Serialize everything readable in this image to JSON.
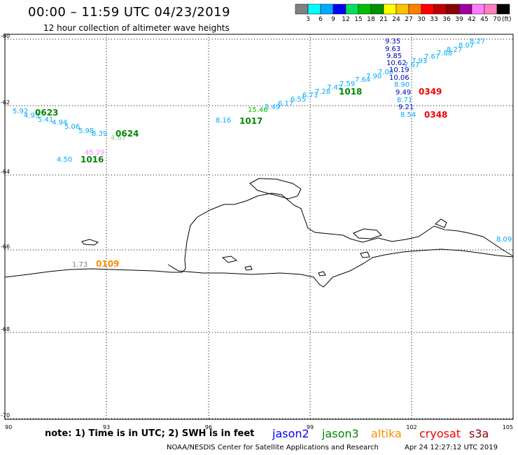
{
  "title": "00:00 – 11:59 UTC 04/23/2019",
  "subtitle": "12 hour collection of altimeter wave heights",
  "colorbar": {
    "unit": "(ft)",
    "swatches": [
      "#808080",
      "#00ffff",
      "#00aaff",
      "#0000ff",
      "#00e060",
      "#00c000",
      "#009000",
      "#ffff00",
      "#ffc000",
      "#ff7f00",
      "#ff0000",
      "#c00000",
      "#8b0000",
      "#a000a0",
      "#ff80ff",
      "#ff80c0",
      "#000000"
    ],
    "ticks": [
      "3",
      "6",
      "9",
      "12",
      "15",
      "18",
      "21",
      "24",
      "27",
      "30",
      "33",
      "36",
      "39",
      "42",
      "45",
      "70"
    ]
  },
  "axes": {
    "lon_labels": [
      "90",
      "93",
      "96",
      "99",
      "102",
      "105"
    ],
    "lat_labels": [
      "-60",
      "-62",
      "-64",
      "-66",
      "-68",
      "-70"
    ]
  },
  "wave_labels": [
    {
      "text": "9.35",
      "color": "#0000c0"
    },
    {
      "text": "8.27",
      "color": "#00aaff"
    },
    {
      "text": "9.63",
      "color": "#0000c0"
    },
    {
      "text": "8.07",
      "color": "#00aaff"
    },
    {
      "text": "8.27",
      "color": "#00aaff"
    },
    {
      "text": "9.85",
      "color": "#0000c0"
    },
    {
      "text": "7.88",
      "color": "#00aaff"
    },
    {
      "text": "7.67",
      "color": "#00aaff"
    },
    {
      "text": "7.93",
      "color": "#00aaff"
    },
    {
      "text": "10.62",
      "color": "#0000c0"
    },
    {
      "text": "7.67",
      "color": "#00aaff"
    },
    {
      "text": "10.19",
      "color": "#0000c0"
    },
    {
      "text": "7.00",
      "color": "#00aaff"
    },
    {
      "text": "10.06",
      "color": "#0000c0"
    },
    {
      "text": "7.90",
      "color": "#00aaff"
    },
    {
      "text": "7.64",
      "color": "#00aaff"
    },
    {
      "text": "8.90",
      "color": "#00aaff"
    },
    {
      "text": "7.59",
      "color": "#00aaff"
    },
    {
      "text": "7.42",
      "color": "#00aaff"
    },
    {
      "text": "9.49",
      "color": "#0000c0"
    },
    {
      "text": "7.28",
      "color": "#00aaff"
    },
    {
      "text": "6.73",
      "color": "#00aaff"
    },
    {
      "text": "8.71",
      "color": "#00aaff"
    },
    {
      "text": "6.55",
      "color": "#00aaff"
    },
    {
      "text": "6.17",
      "color": "#00aaff"
    },
    {
      "text": "9.21",
      "color": "#0000c0"
    },
    {
      "text": "5.49",
      "color": "#00aaff"
    },
    {
      "text": "15.46",
      "color": "#00c000"
    },
    {
      "text": "8.54",
      "color": "#00aaff"
    },
    {
      "text": "8.16",
      "color": "#00aaff"
    },
    {
      "text": "5.92",
      "color": "#00aaff"
    },
    {
      "text": "4.93",
      "color": "#00aaff"
    },
    {
      "text": "5.41",
      "color": "#00aaff"
    },
    {
      "text": "4.94",
      "color": "#00aaff"
    },
    {
      "text": "5.06",
      "color": "#00aaff"
    },
    {
      "text": "5.98",
      "color": "#00aaff"
    },
    {
      "text": "8.39",
      "color": "#00aaff"
    },
    {
      "text": "4.67",
      "color": "#7cd37c"
    },
    {
      "text": "45.29",
      "color": "#ff80ff"
    },
    {
      "text": "4.50",
      "color": "#00aaff"
    },
    {
      "text": "1.73",
      "color": "#808080"
    },
    {
      "text": "8.09",
      "color": "#00aaff"
    }
  ],
  "pass_labels": [
    {
      "text": "0623",
      "color": "#008800"
    },
    {
      "text": "0624",
      "color": "#008800"
    },
    {
      "text": "1016",
      "color": "#008800"
    },
    {
      "text": "1017",
      "color": "#008800"
    },
    {
      "text": "1018",
      "color": "#008800"
    },
    {
      "text": "0349",
      "color": "#ee0000"
    },
    {
      "text": "0348",
      "color": "#ee0000"
    },
    {
      "text": "0109",
      "color": "#ff8c00"
    }
  ],
  "note": "note: 1) Time is in UTC; 2) SWH is in feet",
  "satellites": [
    {
      "name": "jason2",
      "color": "#0000ff"
    },
    {
      "name": "jason3",
      "color": "#008800"
    },
    {
      "name": "altika",
      "color": "#ff8c00"
    },
    {
      "name": "cryosat",
      "color": "#ee0000"
    },
    {
      "name": "s3a",
      "color": "#8b0000"
    }
  ],
  "credit": "NOAA/NESDIS Center for Satellite Applications and Research",
  "timestamp": "Apr 24 12:27:12 UTC 2019"
}
